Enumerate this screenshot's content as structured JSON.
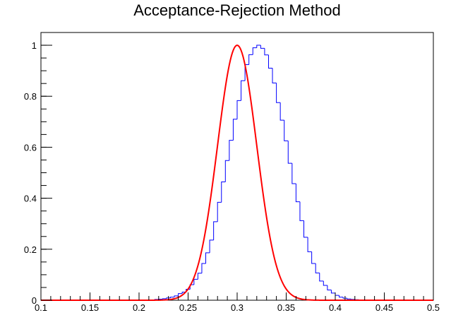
{
  "chart_data": {
    "type": "histogram",
    "title": "Acceptance-Rejection Method",
    "xlabel": "",
    "ylabel": "",
    "xlim": [
      0.1,
      0.5
    ],
    "ylim": [
      0,
      1.05
    ],
    "x_ticks": [
      "0.1",
      "0.15",
      "0.2",
      "0.25",
      "0.3",
      "0.35",
      "0.4",
      "0.45",
      "0.5"
    ],
    "x_tick_values": [
      0.1,
      0.15,
      0.2,
      0.25,
      0.3,
      0.35,
      0.4,
      0.45,
      0.5
    ],
    "y_ticks": [
      "0",
      "0.2",
      "0.4",
      "0.6",
      "0.8",
      "1"
    ],
    "y_tick_values": [
      0,
      0.2,
      0.4,
      0.6,
      0.8,
      1.0
    ],
    "grid": false,
    "legend": "none",
    "histogram": {
      "name": "histogram",
      "color": "#0000ff",
      "bin_width": 0.004,
      "bin_start": 0.1,
      "values": [
        0,
        0,
        0,
        0,
        0,
        0,
        0,
        0,
        0,
        0,
        0,
        0,
        0,
        0,
        0,
        0,
        0,
        0,
        0,
        0,
        0,
        0,
        0,
        0,
        0,
        0,
        0,
        0,
        0,
        0.003,
        0.004,
        0.006,
        0.009,
        0.012,
        0.017,
        0.026,
        0.032,
        0.043,
        0.061,
        0.082,
        0.106,
        0.144,
        0.186,
        0.236,
        0.308,
        0.384,
        0.464,
        0.548,
        0.627,
        0.71,
        0.783,
        0.861,
        0.924,
        0.963,
        0.99,
        1.0,
        0.988,
        0.962,
        0.91,
        0.852,
        0.775,
        0.706,
        0.625,
        0.537,
        0.457,
        0.386,
        0.312,
        0.247,
        0.19,
        0.144,
        0.107,
        0.075,
        0.058,
        0.04,
        0.028,
        0.019,
        0.012,
        0.008,
        0.005,
        0.003,
        0.002,
        0.001,
        0,
        0,
        0,
        0,
        0,
        0,
        0,
        0,
        0,
        0,
        0,
        0,
        0,
        0,
        0,
        0,
        0,
        0
      ]
    },
    "fit": {
      "name": "gaussian-fit",
      "color": "#ff0000",
      "function": "gaussian",
      "mean": 0.3,
      "sigma": 0.02,
      "amplitude": 1.0
    }
  }
}
